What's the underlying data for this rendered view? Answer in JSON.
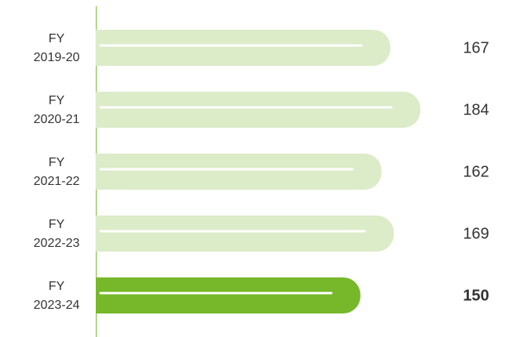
{
  "chart_data": {
    "type": "bar",
    "orientation": "horizontal",
    "categories": [
      "FY\n2019-20",
      "FY\n2020-21",
      "FY\n2021-22",
      "FY\n2022-23",
      "FY\n2023-24"
    ],
    "values": [
      167,
      184,
      162,
      169,
      150
    ],
    "colors": [
      "#dcebc8",
      "#dcebc8",
      "#dcebc8",
      "#dcebc8",
      "#76b82a"
    ],
    "highlight": 4,
    "highlight_label_color": "#2e8b2e"
  }
}
